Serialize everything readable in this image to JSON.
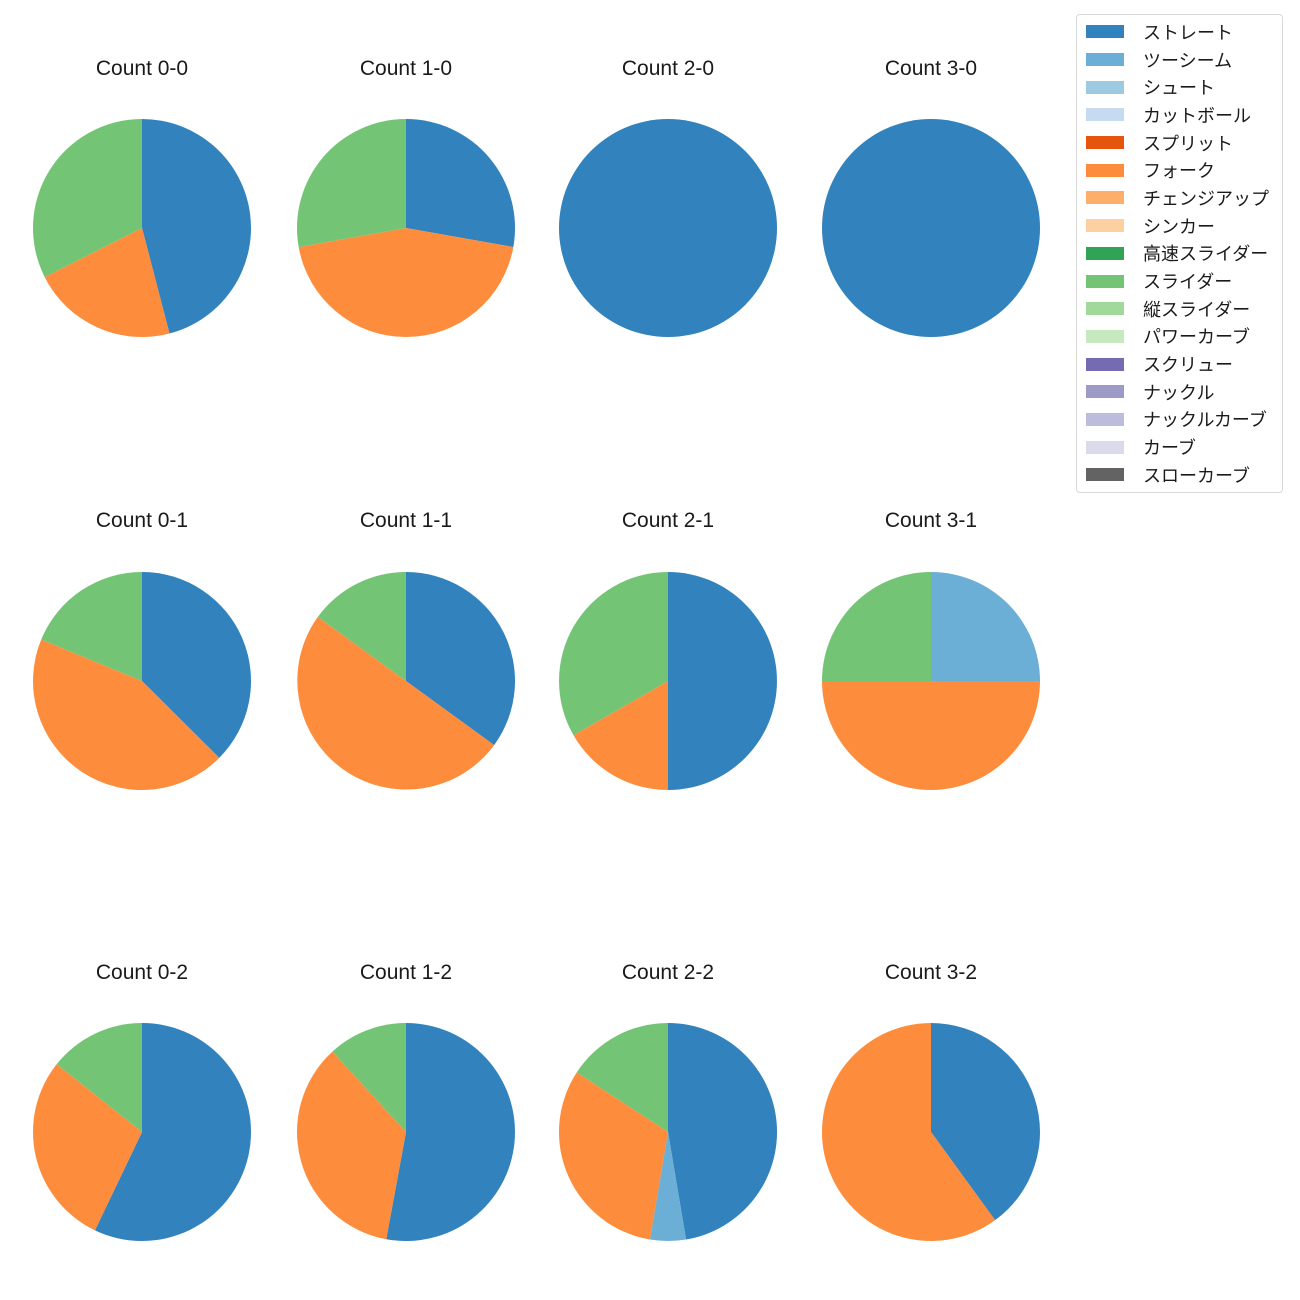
{
  "figure": {
    "background": "#ffffff",
    "text_color": "#1a1a1a"
  },
  "legend": {
    "position": "upper right",
    "items": [
      {
        "key": "straight",
        "label": "ストレート",
        "color": "#3182bd"
      },
      {
        "key": "two-seam",
        "label": "ツーシーム",
        "color": "#6baed6"
      },
      {
        "key": "shoot",
        "label": "シュート",
        "color": "#9ecae1"
      },
      {
        "key": "cut-ball",
        "label": "カットボール",
        "color": "#c6dbef"
      },
      {
        "key": "split",
        "label": "スプリット",
        "color": "#e6550d"
      },
      {
        "key": "fork",
        "label": "フォーク",
        "color": "#fd8d3c"
      },
      {
        "key": "changeup",
        "label": "チェンジアップ",
        "color": "#fdae6b"
      },
      {
        "key": "sinker",
        "label": "シンカー",
        "color": "#fdd0a2"
      },
      {
        "key": "high-speed-slider",
        "label": "高速スライダー",
        "color": "#31a354"
      },
      {
        "key": "slider",
        "label": "スライダー",
        "color": "#74c476"
      },
      {
        "key": "vertical-slider",
        "label": "縦スライダー",
        "color": "#a1d99b"
      },
      {
        "key": "power-curve",
        "label": "パワーカーブ",
        "color": "#c7e9c0"
      },
      {
        "key": "screw",
        "label": "スクリュー",
        "color": "#756bb1"
      },
      {
        "key": "knuckle",
        "label": "ナックル",
        "color": "#9e9ac8"
      },
      {
        "key": "knuckle-curve",
        "label": "ナックルカーブ",
        "color": "#bcbddc"
      },
      {
        "key": "curve",
        "label": "カーブ",
        "color": "#dadaeb"
      },
      {
        "key": "slow-curve",
        "label": "スローカーブ",
        "color": "#636363"
      }
    ]
  },
  "chart_data": {
    "type": "pie",
    "grid": "3 rows x 4 columns",
    "start_angle": 90,
    "clockwise": true,
    "pct_distance": 0.6,
    "units": "percent",
    "charts": [
      {
        "title": "Count 0-0",
        "slices": [
          {
            "pitch": "straight",
            "value": 45.9,
            "label": "45.9"
          },
          {
            "pitch": "fork",
            "value": 21.6,
            "label": "21.6"
          },
          {
            "pitch": "slider",
            "value": 32.4,
            "label": "32.4"
          }
        ]
      },
      {
        "title": "Count 1-0",
        "slices": [
          {
            "pitch": "straight",
            "value": 27.8,
            "label": "27.8"
          },
          {
            "pitch": "fork",
            "value": 44.4,
            "label": "44.4"
          },
          {
            "pitch": "slider",
            "value": 27.8,
            "label": "27.8"
          }
        ]
      },
      {
        "title": "Count 2-0",
        "slices": [
          {
            "pitch": "straight",
            "value": 100.0,
            "label": "100.0"
          }
        ]
      },
      {
        "title": "Count 3-0",
        "slices": [
          {
            "pitch": "straight",
            "value": 100.0,
            "label": "100.0"
          }
        ]
      },
      {
        "title": "Count 0-1",
        "slices": [
          {
            "pitch": "straight",
            "value": 37.5,
            "label": "37.5"
          },
          {
            "pitch": "fork",
            "value": 43.8,
            "label": "43.8"
          },
          {
            "pitch": "slider",
            "value": 18.8,
            "label": "18.8"
          }
        ]
      },
      {
        "title": "Count 1-1",
        "slices": [
          {
            "pitch": "straight",
            "value": 35.0,
            "label": "35.0"
          },
          {
            "pitch": "fork",
            "value": 50.0,
            "label": "50.0"
          },
          {
            "pitch": "slider",
            "value": 15.0,
            "label": "15.0"
          }
        ]
      },
      {
        "title": "Count 2-1",
        "slices": [
          {
            "pitch": "straight",
            "value": 50.0,
            "label": "50.0"
          },
          {
            "pitch": "fork",
            "value": 16.7,
            "label": "16.7"
          },
          {
            "pitch": "slider",
            "value": 33.3,
            "label": "33.3"
          }
        ]
      },
      {
        "title": "Count 3-1",
        "slices": [
          {
            "pitch": "two-seam",
            "value": 25.0,
            "label": "25.0"
          },
          {
            "pitch": "fork",
            "value": 50.0,
            "label": "50.0"
          },
          {
            "pitch": "slider",
            "value": 25.0,
            "label": "25.0"
          }
        ]
      },
      {
        "title": "Count 0-2",
        "slices": [
          {
            "pitch": "straight",
            "value": 57.1,
            "label": "57.1"
          },
          {
            "pitch": "fork",
            "value": 28.6,
            "label": "28.6"
          },
          {
            "pitch": "slider",
            "value": 14.3,
            "label": "14.3"
          }
        ]
      },
      {
        "title": "Count 1-2",
        "slices": [
          {
            "pitch": "straight",
            "value": 52.9,
            "label": "52.9"
          },
          {
            "pitch": "fork",
            "value": 35.3,
            "label": "35.3"
          },
          {
            "pitch": "slider",
            "value": 11.8,
            "label": "11.8"
          }
        ]
      },
      {
        "title": "Count 2-2",
        "slices": [
          {
            "pitch": "straight",
            "value": 47.4,
            "label": "47.4"
          },
          {
            "pitch": "two-seam",
            "value": 5.3,
            "label": ""
          },
          {
            "pitch": "fork",
            "value": 31.6,
            "label": "31.6"
          },
          {
            "pitch": "slider",
            "value": 15.8,
            "label": "15.8"
          }
        ]
      },
      {
        "title": "Count 3-2",
        "slices": [
          {
            "pitch": "straight",
            "value": 40.0,
            "label": "40.0"
          },
          {
            "pitch": "fork",
            "value": 60.0,
            "label": "60.0"
          }
        ]
      }
    ]
  }
}
